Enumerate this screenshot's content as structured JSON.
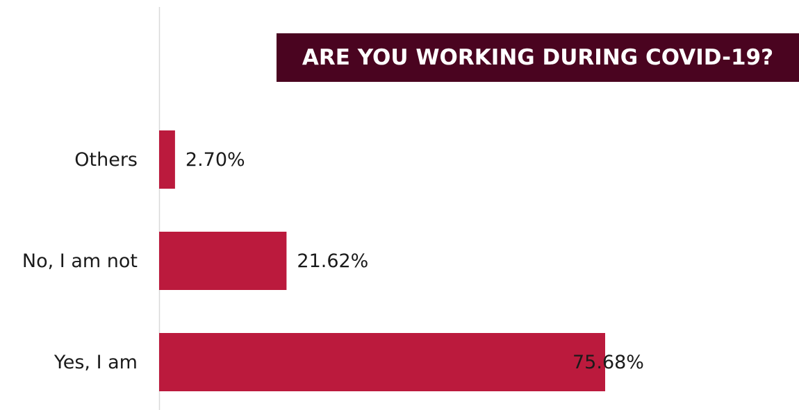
{
  "colors": {
    "bar": "#bb1a3d",
    "title_bg": "#4a0420",
    "title_text": "#ffffff",
    "axis": "#d9d9d9"
  },
  "chart_data": {
    "type": "bar",
    "orientation": "horizontal",
    "title": "ARE YOU WORKING DURING COVID-19?",
    "categories": [
      "Others",
      "No, I am not",
      "Yes, I am"
    ],
    "values": [
      2.7,
      21.62,
      75.68
    ],
    "value_labels": [
      "2.70%",
      "21.62%",
      "75.68%"
    ],
    "unit": "%",
    "xlim": [
      0,
      100
    ],
    "grid": false,
    "legend": "none"
  }
}
